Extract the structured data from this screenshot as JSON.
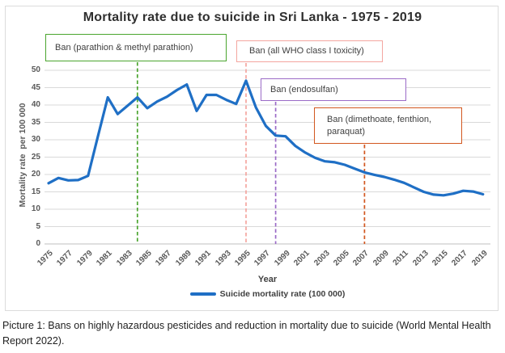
{
  "chart": {
    "title": "Mortality rate due to suicide in Sri Lanka - 1975 - 2019",
    "x_axis_title": "Year",
    "y_axis_title": "Mortality rate  per 100 000",
    "legend_label": "Suicide mortality rate (100 000)"
  },
  "chart_data": {
    "type": "line",
    "title": "Mortality rate due to suicide in Sri Lanka - 1975 - 2019",
    "xlabel": "Year",
    "ylabel": "Mortality rate per 100 000",
    "ylim": [
      0,
      50
    ],
    "ytick_step": 5,
    "grid": true,
    "legend_position": "bottom",
    "x": [
      1975,
      1976,
      1977,
      1978,
      1979,
      1980,
      1981,
      1982,
      1983,
      1984,
      1985,
      1986,
      1987,
      1988,
      1989,
      1990,
      1991,
      1992,
      1993,
      1994,
      1995,
      1996,
      1997,
      1998,
      1999,
      2000,
      2001,
      2002,
      2003,
      2004,
      2005,
      2006,
      2007,
      2008,
      2009,
      2010,
      2011,
      2012,
      2013,
      2014,
      2015,
      2016,
      2017,
      2018,
      2019
    ],
    "xtick_labels": [
      1975,
      1977,
      1979,
      1981,
      1983,
      1985,
      1987,
      1989,
      1991,
      1993,
      1995,
      1997,
      1999,
      2001,
      2003,
      2005,
      2007,
      2009,
      2011,
      2013,
      2015,
      2017,
      2019
    ],
    "series": [
      {
        "name": "Suicide mortality rate (100 000)",
        "color": "#1f6fc5",
        "values": [
          17.5,
          19.0,
          18.3,
          18.4,
          19.6,
          31.0,
          42.2,
          37.4,
          39.8,
          42.2,
          39.1,
          41.0,
          42.4,
          44.3,
          45.9,
          38.3,
          42.9,
          42.9,
          41.5,
          40.3,
          47.0,
          39.3,
          34.0,
          31.2,
          31.0,
          28.2,
          26.3,
          24.8,
          23.8,
          23.5,
          22.8,
          21.7,
          20.6,
          19.9,
          19.3,
          18.5,
          17.6,
          16.3,
          15.0,
          14.2,
          14.0,
          14.5,
          15.3,
          15.1,
          14.3
        ]
      }
    ],
    "annotations": [
      {
        "label": "Ban (parathion & methyl parathion)",
        "year": 1984,
        "color": "#4ba52f"
      },
      {
        "label": "Ban (all WHO class I toxicity)",
        "year": 1995,
        "color": "#f4a6a0"
      },
      {
        "label": "Ban (endosulfan)",
        "year": 1998,
        "color": "#9b6bc7"
      },
      {
        "label": "Ban (dimethoate, fenthion, paraquat)",
        "year": 2007,
        "color": "#d2571f"
      }
    ],
    "colors": {
      "line": "#1f6fc5",
      "gridline": "#d9d9d9",
      "axis_line": "#bfbfbf",
      "tick_text": "#595959"
    }
  },
  "caption": "Picture 1: Bans on highly hazardous pesticides and reduction in mortality due to suicide (World Mental Health Report 2022)."
}
